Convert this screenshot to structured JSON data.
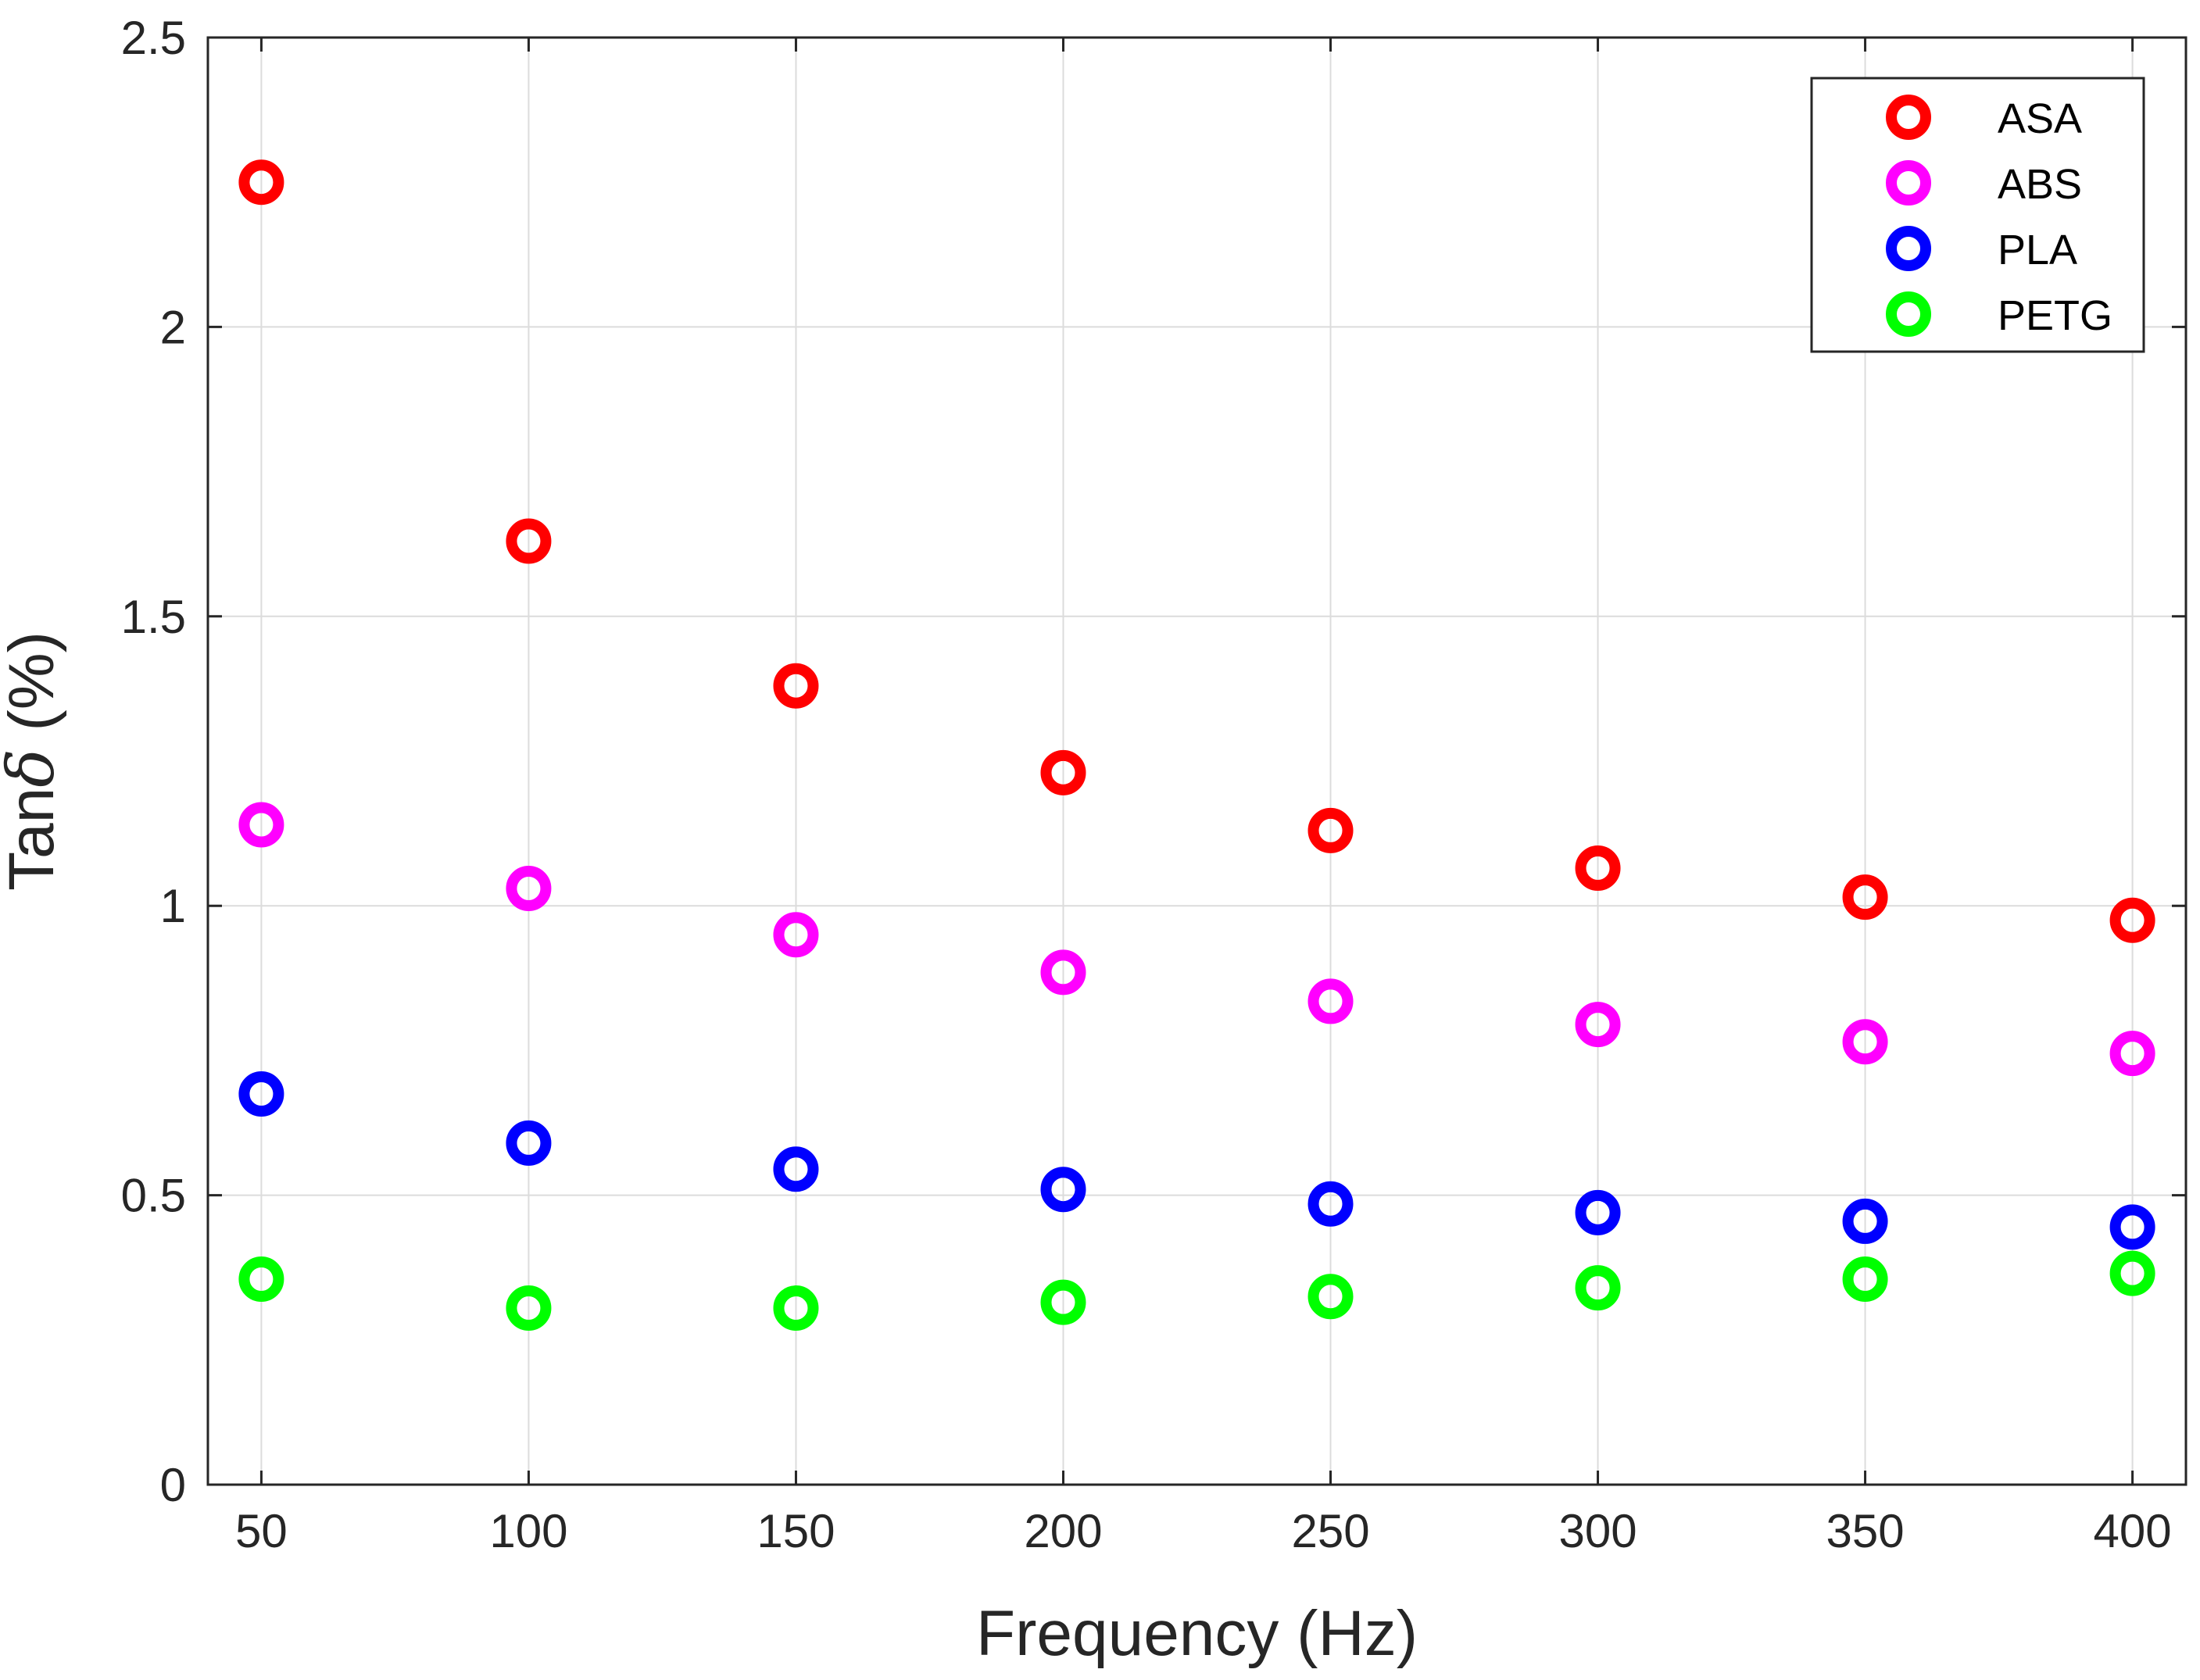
{
  "chart_data": {
    "type": "scatter",
    "title": "",
    "xlabel": "Frequency (Hz)",
    "ylabel_prefix": "Tan",
    "ylabel_symbol": "δ",
    "ylabel_suffix": " (%)",
    "x": [
      50,
      100,
      150,
      200,
      250,
      300,
      350,
      400
    ],
    "xlim": [
      40,
      410
    ],
    "ylim": [
      0,
      2.5
    ],
    "xticks": [
      50,
      100,
      150,
      200,
      250,
      300,
      350,
      400
    ],
    "xtick_labels": [
      "50",
      "100",
      "150",
      "200",
      "250",
      "300",
      "350",
      "400"
    ],
    "yticks": [
      0,
      0.5,
      1,
      1.5,
      2,
      2.5
    ],
    "ytick_labels": [
      "0",
      "0.5",
      "1",
      "1.5",
      "2",
      "2.5"
    ],
    "grid": true,
    "legend_position": "top-right",
    "marker": "open-circle",
    "series": [
      {
        "name": "ASA",
        "color": "#ff0000",
        "values": [
          2.25,
          1.63,
          1.38,
          1.23,
          1.13,
          1.065,
          1.015,
          0.975
        ]
      },
      {
        "name": "ABS",
        "color": "#ff00ff",
        "values": [
          1.14,
          1.03,
          0.95,
          0.885,
          0.835,
          0.795,
          0.765,
          0.745
        ]
      },
      {
        "name": "PLA",
        "color": "#0000ff",
        "values": [
          0.675,
          0.59,
          0.545,
          0.51,
          0.485,
          0.47,
          0.455,
          0.445
        ]
      },
      {
        "name": "PETG",
        "color": "#00ff00",
        "values": [
          0.355,
          0.305,
          0.305,
          0.315,
          0.325,
          0.34,
          0.355,
          0.365
        ]
      }
    ]
  }
}
